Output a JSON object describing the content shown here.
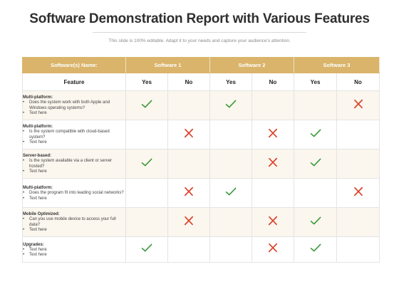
{
  "title": "Software Demonstration Report with Various Features",
  "subtitle": "This slide is 100% editable. Adapt it to your needs and capture your audience's attention.",
  "header": {
    "software_label": "Software(s) Name:",
    "columns": [
      "Software 1",
      "Software 2",
      "Software 3"
    ],
    "feature_label": "Feature",
    "yes_label": "Yes",
    "no_label": "No"
  },
  "colors": {
    "header_bg": "#d9b46a",
    "check": "#3a9a3a",
    "cross": "#d9432b",
    "row_alt": "#fbf6ee"
  },
  "rows": [
    {
      "title": "Multi-platform:",
      "bullets": [
        "Does the system work with both Apple and Windows operating systems?",
        "Text here"
      ],
      "marks": [
        "check",
        "",
        "check",
        "",
        "",
        "cross"
      ]
    },
    {
      "title": "Multi-platform:",
      "bullets": [
        "Is the system compatible with cloud-based system?",
        "Text here"
      ],
      "marks": [
        "",
        "cross",
        "",
        "cross",
        "check",
        ""
      ]
    },
    {
      "title": "Server-based:",
      "bullets": [
        "Is the system available via a client or server hosted?",
        "Text here"
      ],
      "marks": [
        "check",
        "",
        "",
        "cross",
        "check",
        ""
      ]
    },
    {
      "title": "Multi-platform:",
      "bullets": [
        "Does the program fit into leading social networks?",
        "Text here"
      ],
      "marks": [
        "",
        "cross",
        "check",
        "",
        "",
        "cross"
      ]
    },
    {
      "title": "Mobile Optimized:",
      "bullets": [
        "Can you use mobile device to access your full data?",
        "Text here"
      ],
      "marks": [
        "",
        "cross",
        "",
        "cross",
        "check",
        ""
      ]
    },
    {
      "title": "Upgrades:",
      "bullets": [
        "Text here",
        "Text here"
      ],
      "marks": [
        "check",
        "",
        "",
        "cross",
        "check",
        ""
      ]
    }
  ]
}
